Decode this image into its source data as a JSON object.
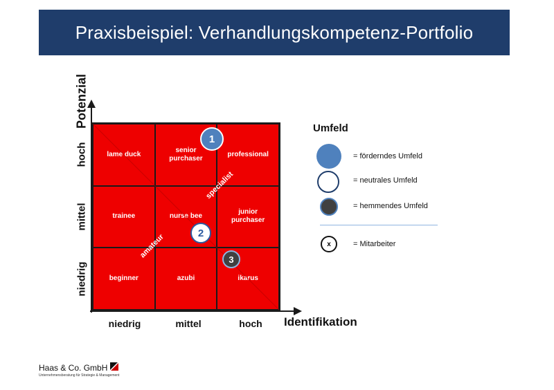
{
  "title": "Praxisbeispiel: Verhandlungskompetenz-Portfolio",
  "axes": {
    "y_label": "Potenzial",
    "x_label": "Identifikation",
    "rows": [
      "hoch",
      "mittel",
      "niedrig"
    ],
    "cols": [
      "niedrig",
      "mittel",
      "hoch"
    ]
  },
  "cells": [
    [
      "lame duck",
      "senior purchaser",
      "professional"
    ],
    [
      "trainee",
      "nurse bee",
      "junior purchaser"
    ],
    [
      "beginner",
      "azubi",
      "ikarus"
    ]
  ],
  "diagonal_labels": {
    "lower": "amateur",
    "upper": "specialist"
  },
  "markers": [
    {
      "label": "1",
      "type": "förderndes Umfeld",
      "fill": "#4f81bd"
    },
    {
      "label": "2",
      "type": "neutrales Umfeld",
      "fill": "#ffffff"
    },
    {
      "label": "3",
      "type": "hemmendes Umfeld",
      "fill": "#404040"
    }
  ],
  "legend": {
    "title": "Umfeld",
    "items": [
      {
        "text": "= förderndes Umfeld"
      },
      {
        "text": "= neutrales Umfeld"
      },
      {
        "text": "= hemmendes Umfeld"
      }
    ],
    "employee_symbol": "x",
    "employee_text": "= Mitarbeiter"
  },
  "footer": {
    "company": "Haas & Co. GmbH",
    "tagline": "Unternehmensberatung für Strategie & Management"
  },
  "colors": {
    "title_bg": "#1f3d6b",
    "cell": "#ee0000",
    "accent": "#4f81bd"
  }
}
